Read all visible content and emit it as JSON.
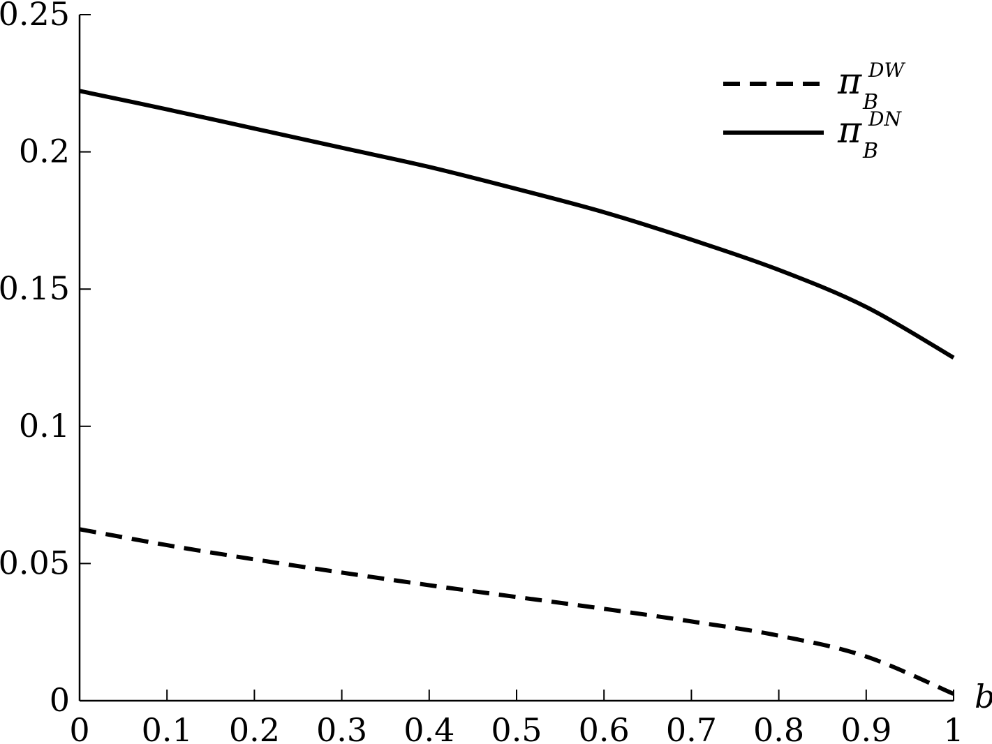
{
  "chart_data": {
    "type": "line",
    "title": "",
    "xlabel": "b",
    "ylabel": "",
    "xlim": [
      0,
      1
    ],
    "ylim": [
      0,
      0.25
    ],
    "grid": false,
    "legend_position": "top-right",
    "x_ticks": [
      0,
      0.1,
      0.2,
      0.3,
      0.4,
      0.5,
      0.6,
      0.7,
      0.8,
      0.9,
      1
    ],
    "x_tick_labels": [
      "0",
      "0.1",
      "0.2",
      "0.3",
      "0.4",
      "0.5",
      "0.6",
      "0.7",
      "0.8",
      "0.9",
      "1"
    ],
    "y_ticks": [
      0,
      0.05,
      0.1,
      0.15,
      0.2,
      0.25
    ],
    "y_tick_labels": [
      "0",
      "0.05",
      "0.1",
      "0.15",
      "0.2",
      "0.25"
    ],
    "x": [
      0,
      0.1,
      0.2,
      0.3,
      0.4,
      0.5,
      0.6,
      0.7,
      0.8,
      0.9,
      1
    ],
    "series": [
      {
        "symbol": "π",
        "subscript": "B",
        "superscript": "DW",
        "style": "dashed",
        "color": "#000000",
        "values": [
          0.0625,
          0.0567,
          0.0515,
          0.0467,
          0.0421,
          0.0378,
          0.0335,
          0.0289,
          0.0237,
          0.0161,
          0.0025
        ]
      },
      {
        "symbol": "π",
        "subscript": "B",
        "superscript": "DN",
        "style": "solid",
        "color": "#000000",
        "values": [
          0.2222,
          0.2155,
          0.2085,
          0.2015,
          0.1945,
          0.1865,
          0.178,
          0.168,
          0.157,
          0.1435,
          0.125
        ]
      }
    ]
  }
}
